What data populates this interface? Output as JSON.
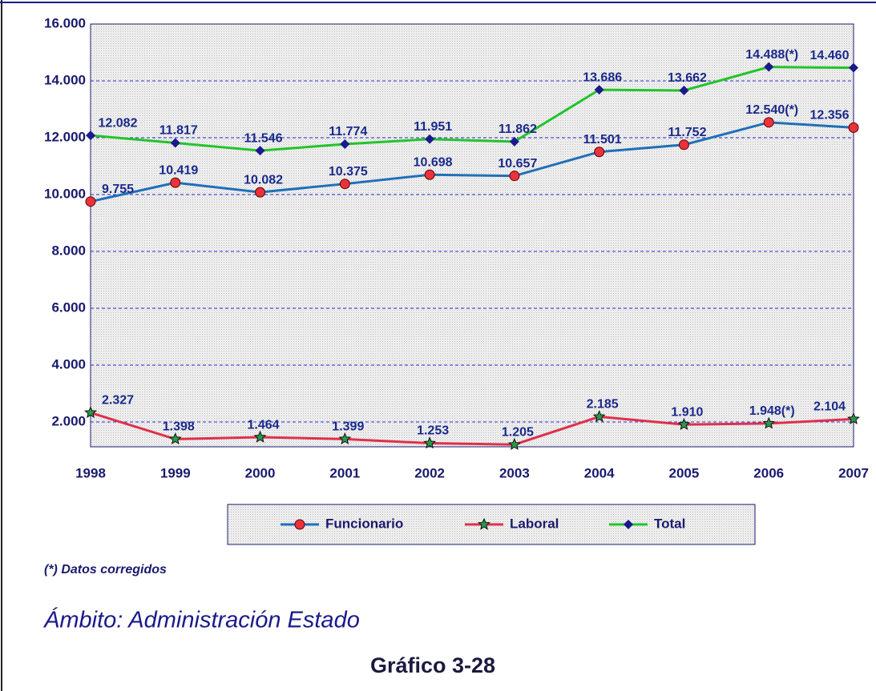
{
  "chart_data": {
    "type": "line",
    "title": "Gráfico 3-28",
    "scope": "Ámbito: Administración Estado",
    "footnote": "(*) Datos corregidos",
    "categories": [
      "1998",
      "1999",
      "2000",
      "2001",
      "2002",
      "2003",
      "2004",
      "2005",
      "2006",
      "2007"
    ],
    "series": [
      {
        "name": "Funcionario",
        "color": "#1f6fb8",
        "marker": "circle",
        "marker_color": "#e8323c",
        "values": [
          9755,
          10419,
          10082,
          10375,
          10698,
          10657,
          11501,
          11752,
          12540,
          12356
        ],
        "value_labels": [
          "9.755",
          "10.419",
          "10.082",
          "10.375",
          "10.698",
          "10.657",
          "11.501",
          "11.752",
          "12.540(*)",
          "12.356"
        ]
      },
      {
        "name": "Laboral",
        "color": "#e0304a",
        "marker": "star",
        "marker_color": "#2a9a4a",
        "values": [
          2327,
          1398,
          1464,
          1399,
          1253,
          1205,
          2185,
          1910,
          1948,
          2104
        ],
        "value_labels": [
          "2.327",
          "1.398",
          "1.464",
          "1.399",
          "1.253",
          "1.205",
          "2.185",
          "1.910",
          "1.948(*)",
          "2.104"
        ]
      },
      {
        "name": "Total",
        "color": "#22c42a",
        "marker": "diamond",
        "marker_color": "#1a1a8c",
        "values": [
          12082,
          11817,
          11546,
          11774,
          11951,
          11862,
          13686,
          13662,
          14488,
          14460
        ],
        "value_labels": [
          "12.082",
          "11.817",
          "11.546",
          "11.774",
          "11.951",
          "11.862",
          "13.686",
          "13.662",
          "14.488(*)",
          "14.460"
        ]
      }
    ],
    "ylim": [
      1127,
      16000
    ],
    "yticks": [
      {
        "value": 2000,
        "label": "2.000"
      },
      {
        "value": 4000,
        "label": "4.000"
      },
      {
        "value": 6000,
        "label": "6.000"
      },
      {
        "value": 8000,
        "label": "8.000"
      },
      {
        "value": 10000,
        "label": "10.000"
      },
      {
        "value": 12000,
        "label": "12.000"
      },
      {
        "value": 14000,
        "label": "14.000"
      },
      {
        "value": 16000,
        "label": "16.000"
      }
    ],
    "grid": true,
    "legend": "bottom"
  }
}
